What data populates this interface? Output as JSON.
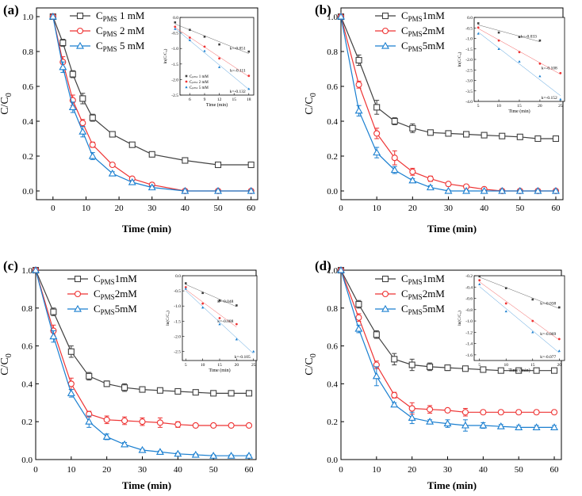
{
  "chart_data": [
    {
      "type": "line",
      "panel_label": "(a)",
      "xlabel": "Time (min)",
      "ylabel": "C/C",
      "ylabel_sub": "0",
      "xlim": [
        -5,
        62
      ],
      "ylim": [
        -0.05,
        1.05
      ],
      "xticks": [
        0,
        10,
        20,
        30,
        40,
        50,
        60
      ],
      "yticks": [
        0.0,
        0.2,
        0.4,
        0.6,
        0.8,
        1.0
      ],
      "series": [
        {
          "name": "C",
          "name_sub": "PMS",
          "name_suffix": " 1 mM",
          "color": "#404040",
          "marker": "square",
          "x": [
            0,
            3,
            6,
            9,
            12,
            18,
            24,
            30,
            40,
            50,
            60
          ],
          "y": [
            1.0,
            0.85,
            0.67,
            0.53,
            0.42,
            0.325,
            0.265,
            0.21,
            0.175,
            0.15,
            0.15
          ],
          "err": [
            0.0,
            0.02,
            0.02,
            0.03,
            0.02,
            0.015,
            0.01,
            0.01,
            0.015,
            0.01,
            0.01
          ]
        },
        {
          "name": "C",
          "name_sub": "PMS",
          "name_suffix": " 2 mM",
          "color": "#ee3333",
          "marker": "circle",
          "x": [
            0,
            3,
            6,
            9,
            12,
            18,
            24,
            30,
            40,
            50,
            60
          ],
          "y": [
            1.0,
            0.74,
            0.52,
            0.39,
            0.265,
            0.15,
            0.07,
            0.035,
            0.0,
            0.0,
            0.0
          ],
          "err": [
            0.0,
            0.03,
            0.03,
            0.02,
            0.015,
            0.01,
            0.01,
            0.01,
            0.005,
            0.005,
            0.005
          ]
        },
        {
          "name": "C",
          "name_sub": "PMS",
          "name_suffix": " 5 mM",
          "color": "#1a7fd0",
          "marker": "triangle",
          "x": [
            0,
            3,
            6,
            9,
            12,
            18,
            24,
            30,
            40,
            50,
            60
          ],
          "y": [
            1.0,
            0.71,
            0.48,
            0.34,
            0.2,
            0.1,
            0.05,
            0.02,
            0.0,
            0.0,
            0.0
          ],
          "err": [
            0.0,
            0.03,
            0.03,
            0.03,
            0.02,
            0.01,
            0.01,
            0.01,
            0.005,
            0.005,
            0.005
          ]
        }
      ],
      "inset": {
        "ylabel": "ln(C/C₀)",
        "xlabel": "Time (min)",
        "xlim": [
          4,
          19
        ],
        "ylim": [
          -2.5,
          0
        ],
        "xticks": [
          3,
          6,
          9,
          12,
          15,
          18
        ],
        "yticks": [
          0.0,
          -0.5,
          -1.0,
          -1.5,
          -2.0,
          -2.5
        ],
        "legend": [
          "Cₚₘₛ 1 mM",
          "Cₚₘₛ 2 mM",
          "Cₚₘₛ 5 mM"
        ],
        "series": [
          {
            "k": "k=-0.051",
            "x": [
              3,
              6,
              9,
              12,
              18
            ],
            "y": [
              -0.16,
              -0.4,
              -0.62,
              -0.87,
              -1.1
            ]
          },
          {
            "k": "k=-0.111",
            "x": [
              3,
              6,
              9,
              12,
              18
            ],
            "y": [
              -0.3,
              -0.65,
              -0.94,
              -1.32,
              -1.88
            ]
          },
          {
            "k": "k=-0.132",
            "x": [
              3,
              6,
              9,
              12,
              18
            ],
            "y": [
              -0.37,
              -0.73,
              -1.08,
              -1.6,
              -2.3
            ]
          }
        ]
      }
    },
    {
      "type": "line",
      "panel_label": "(b)",
      "xlabel": "Time (min)",
      "ylabel": "C/C",
      "ylabel_sub": "0",
      "xlim": [
        0,
        62
      ],
      "ylim": [
        -0.05,
        1.05
      ],
      "xticks": [
        0,
        10,
        20,
        30,
        40,
        50,
        60
      ],
      "yticks": [
        0.0,
        0.2,
        0.4,
        0.6,
        0.8,
        1.0
      ],
      "series": [
        {
          "name": "C",
          "name_sub": "PMS",
          "name_suffix": "1mM",
          "color": "#404040",
          "marker": "square",
          "x": [
            0,
            5,
            10,
            15,
            20,
            25,
            30,
            35,
            40,
            45,
            50,
            55,
            60
          ],
          "y": [
            1.0,
            0.75,
            0.48,
            0.4,
            0.36,
            0.335,
            0.33,
            0.325,
            0.32,
            0.315,
            0.31,
            0.3,
            0.3
          ],
          "err": [
            0.0,
            0.03,
            0.04,
            0.02,
            0.025,
            0.015,
            0.01,
            0.01,
            0.01,
            0.01,
            0.01,
            0.01,
            0.01
          ]
        },
        {
          "name": "C",
          "name_sub": "PMS",
          "name_suffix": "2mM",
          "color": "#ee3333",
          "marker": "circle",
          "x": [
            0,
            5,
            10,
            15,
            20,
            25,
            30,
            35,
            40,
            45,
            50,
            55,
            60
          ],
          "y": [
            1.0,
            0.61,
            0.33,
            0.19,
            0.11,
            0.07,
            0.04,
            0.025,
            0.01,
            0.0,
            0.0,
            0.0,
            0.0
          ],
          "err": [
            0.0,
            0.02,
            0.03,
            0.04,
            0.02,
            0.015,
            0.01,
            0.01,
            0.005,
            0.005,
            0.005,
            0.005,
            0.005
          ]
        },
        {
          "name": "C",
          "name_sub": "PMS",
          "name_suffix": "5mM",
          "color": "#1a7fd0",
          "marker": "triangle",
          "x": [
            0,
            5,
            10,
            15,
            20,
            25,
            30,
            35,
            40,
            45,
            50,
            55,
            60
          ],
          "y": [
            1.0,
            0.46,
            0.22,
            0.12,
            0.06,
            0.02,
            0.0,
            0.0,
            0.0,
            0.0,
            0.0,
            0.0,
            0.0
          ],
          "err": [
            0.0,
            0.03,
            0.03,
            0.02,
            0.01,
            0.01,
            0.005,
            0.005,
            0.005,
            0.005,
            0.005,
            0.005,
            0.005
          ]
        }
      ],
      "inset": {
        "ylabel": "ln(C/C₀)",
        "xlabel": "Time (min)",
        "xlim": [
          4,
          26
        ],
        "ylim": [
          -4.0,
          0
        ],
        "xticks": [
          5,
          10,
          15,
          20,
          25
        ],
        "yticks": [
          0.0,
          -0.5,
          -1.0,
          -1.5,
          -2.0,
          -2.5,
          -3.0,
          -3.5,
          -4.0
        ],
        "series": [
          {
            "k": "k=-0.033",
            "x": [
              5,
              10,
              15,
              20
            ],
            "y": [
              -0.28,
              -0.72,
              -0.93,
              -1.1
            ]
          },
          {
            "k": "k=-0.108",
            "x": [
              5,
              10,
              15,
              20,
              25
            ],
            "y": [
              -0.48,
              -1.1,
              -1.65,
              -2.2,
              -2.65
            ]
          },
          {
            "k": "k=-0.152",
            "x": [
              5,
              10,
              15,
              20,
              25
            ],
            "y": [
              -0.77,
              -1.5,
              -2.1,
              -2.8,
              -3.9
            ]
          }
        ]
      }
    },
    {
      "type": "line",
      "panel_label": "(c)",
      "xlabel": "Time (min)",
      "ylabel": "C/C",
      "ylabel_sub": "0",
      "xlim": [
        0,
        62
      ],
      "ylim": [
        0.0,
        1.0
      ],
      "xticks": [
        0,
        10,
        20,
        30,
        40,
        50,
        60
      ],
      "yticks": [
        0.0,
        0.2,
        0.4,
        0.6,
        0.8,
        1.0
      ],
      "series": [
        {
          "name": "C",
          "name_sub": "PMS",
          "name_suffix": "1mM",
          "color": "#404040",
          "marker": "square",
          "x": [
            0,
            5,
            10,
            15,
            20,
            25,
            30,
            35,
            40,
            45,
            50,
            55,
            60
          ],
          "y": [
            1.0,
            0.78,
            0.57,
            0.44,
            0.4,
            0.38,
            0.37,
            0.365,
            0.36,
            0.355,
            0.35,
            0.35,
            0.35
          ],
          "err": [
            0.0,
            0.02,
            0.03,
            0.02,
            0.015,
            0.02,
            0.01,
            0.01,
            0.01,
            0.01,
            0.01,
            0.01,
            0.01
          ]
        },
        {
          "name": "C",
          "name_sub": "PMS",
          "name_suffix": "2mM",
          "color": "#ee3333",
          "marker": "circle",
          "x": [
            0,
            5,
            10,
            15,
            20,
            25,
            30,
            35,
            40,
            45,
            50,
            55,
            60
          ],
          "y": [
            1.0,
            0.68,
            0.4,
            0.24,
            0.21,
            0.205,
            0.2,
            0.195,
            0.185,
            0.18,
            0.18,
            0.18,
            0.18
          ],
          "err": [
            0.0,
            0.03,
            0.03,
            0.015,
            0.02,
            0.02,
            0.02,
            0.025,
            0.015,
            0.01,
            0.01,
            0.01,
            0.01
          ]
        },
        {
          "name": "C",
          "name_sub": "PMS",
          "name_suffix": "5mM",
          "color": "#1a7fd0",
          "marker": "triangle",
          "x": [
            0,
            5,
            10,
            15,
            20,
            25,
            30,
            35,
            40,
            45,
            50,
            55,
            60
          ],
          "y": [
            1.0,
            0.65,
            0.35,
            0.2,
            0.12,
            0.08,
            0.05,
            0.04,
            0.03,
            0.025,
            0.02,
            0.02,
            0.02
          ],
          "err": [
            0.0,
            0.03,
            0.02,
            0.03,
            0.015,
            0.01,
            0.005,
            0.005,
            0.005,
            0.005,
            0.005,
            0.005,
            0.005
          ]
        }
      ],
      "inset": {
        "ylabel": "ln(C/C₀)",
        "xlabel": "Time (min)",
        "xlim": [
          4,
          26
        ],
        "ylim": [
          -2.8,
          0
        ],
        "xticks": [
          5,
          10,
          15,
          20,
          25
        ],
        "yticks": [
          0.0,
          -0.5,
          -1.0,
          -1.5,
          -2.0,
          -2.5
        ],
        "series": [
          {
            "k": "k=-0.048",
            "x": [
              5,
              10,
              15,
              20
            ],
            "y": [
              -0.25,
              -0.57,
              -0.82,
              -0.98
            ]
          },
          {
            "k": "k=-0.088",
            "x": [
              5,
              10,
              15,
              20
            ],
            "y": [
              -0.38,
              -0.92,
              -1.4,
              -1.6
            ]
          },
          {
            "k": "k=-0.105",
            "x": [
              5,
              10,
              15,
              20,
              25
            ],
            "y": [
              -0.43,
              -1.05,
              -1.6,
              -2.1,
              -2.5
            ]
          }
        ]
      }
    },
    {
      "type": "line",
      "panel_label": "(d)",
      "xlabel": "Time (min)",
      "ylabel": "C/C",
      "ylabel_sub": "0",
      "xlim": [
        0,
        62
      ],
      "ylim": [
        0.0,
        1.0
      ],
      "xticks": [
        0,
        10,
        20,
        30,
        40,
        50,
        60
      ],
      "yticks": [
        0.0,
        0.2,
        0.4,
        0.6,
        0.8,
        1.0
      ],
      "series": [
        {
          "name": "C",
          "name_sub": "PMS",
          "name_suffix": "1mM",
          "color": "#404040",
          "marker": "square",
          "x": [
            0,
            5,
            10,
            15,
            20,
            25,
            30,
            35,
            40,
            45,
            50,
            55,
            60
          ],
          "y": [
            1.0,
            0.82,
            0.66,
            0.53,
            0.5,
            0.49,
            0.485,
            0.48,
            0.475,
            0.47,
            0.47,
            0.47,
            0.47
          ],
          "err": [
            0.0,
            0.02,
            0.02,
            0.03,
            0.03,
            0.02,
            0.015,
            0.01,
            0.01,
            0.01,
            0.01,
            0.01,
            0.01
          ]
        },
        {
          "name": "C",
          "name_sub": "PMS",
          "name_suffix": "2mM",
          "color": "#ee3333",
          "marker": "circle",
          "x": [
            0,
            5,
            10,
            15,
            20,
            25,
            30,
            35,
            40,
            45,
            50,
            55,
            60
          ],
          "y": [
            1.0,
            0.75,
            0.5,
            0.34,
            0.27,
            0.265,
            0.26,
            0.25,
            0.25,
            0.25,
            0.25,
            0.25,
            0.25
          ],
          "err": [
            0.0,
            0.02,
            0.02,
            0.015,
            0.03,
            0.02,
            0.01,
            0.02,
            0.01,
            0.01,
            0.01,
            0.01,
            0.01
          ]
        },
        {
          "name": "C",
          "name_sub": "PMS",
          "name_suffix": "5mM",
          "color": "#1a7fd0",
          "marker": "triangle",
          "x": [
            0,
            5,
            10,
            15,
            20,
            25,
            30,
            35,
            40,
            45,
            50,
            55,
            60
          ],
          "y": [
            1.0,
            0.69,
            0.44,
            0.29,
            0.22,
            0.2,
            0.19,
            0.18,
            0.18,
            0.175,
            0.17,
            0.17,
            0.17
          ],
          "err": [
            0.0,
            0.02,
            0.05,
            0.01,
            0.03,
            0.01,
            0.02,
            0.03,
            0.015,
            0.01,
            0.01,
            0.01,
            0.01
          ]
        }
      ],
      "inset": {
        "ylabel": "ln(C/C₀)",
        "xlabel": "Time (min)",
        "xlim": [
          4,
          21
        ],
        "ylim": [
          -1.7,
          -0.2
        ],
        "xticks": [
          5,
          10,
          15,
          20
        ],
        "yticks": [
          -0.2,
          -0.4,
          -0.6,
          -0.8,
          -1.0,
          -1.2,
          -1.4,
          -1.6
        ],
        "series": [
          {
            "k": "k=-0.038",
            "x": [
              5,
              10,
              15,
              20
            ],
            "y": [
              -0.21,
              -0.42,
              -0.62,
              -0.76
            ]
          },
          {
            "k": "k=-0.069",
            "x": [
              5,
              10,
              15,
              20
            ],
            "y": [
              -0.28,
              -0.69,
              -1.0,
              -1.32
            ]
          },
          {
            "k": "k=-0.077",
            "x": [
              5,
              10,
              15,
              20
            ],
            "y": [
              -0.35,
              -0.83,
              -1.2,
              -1.53
            ]
          }
        ]
      }
    }
  ]
}
